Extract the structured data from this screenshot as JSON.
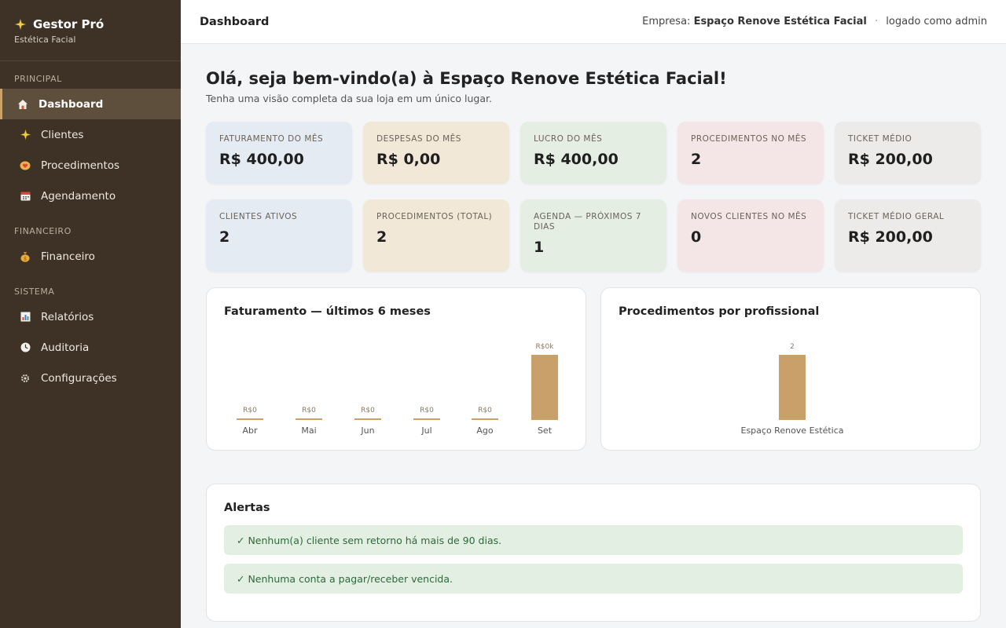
{
  "app": {
    "name": "Gestor Pró",
    "subtitle": "Estética Facial"
  },
  "sidebar": {
    "sections": [
      {
        "label": "PRINCIPAL",
        "items": [
          {
            "label": "Dashboard",
            "icon": "home-icon",
            "active": true
          },
          {
            "label": "Clientes",
            "icon": "sparkle-icon"
          },
          {
            "label": "Procedimentos",
            "icon": "heart-hands-icon"
          },
          {
            "label": "Agendamento",
            "icon": "calendar-icon"
          }
        ]
      },
      {
        "label": "FINANCEIRO",
        "items": [
          {
            "label": "Financeiro",
            "icon": "money-bag-icon"
          }
        ]
      },
      {
        "label": "SISTEMA",
        "items": [
          {
            "label": "Relatórios",
            "icon": "bar-chart-icon"
          },
          {
            "label": "Auditoria",
            "icon": "clock-icon"
          },
          {
            "label": "Configurações",
            "icon": "gear-icon"
          }
        ]
      }
    ]
  },
  "header": {
    "title": "Dashboard",
    "company_label": "Empresa:",
    "company_name": "Espaço Renove Estética Facial",
    "separator": "·",
    "user_text": "logado como admin"
  },
  "welcome": {
    "title": "Olá, seja bem-vindo(a) à Espaço Renove Estética Facial!",
    "subtitle": "Tenha uma visão completa da sua loja em um único lugar."
  },
  "kpis_row1": [
    {
      "label": "FATURAMENTO DO MÊS",
      "value": "R$ 400,00",
      "color": "#e4ebf3"
    },
    {
      "label": "DESPESAS DO MÊS",
      "value": "R$ 0,00",
      "color": "#f1e8d8"
    },
    {
      "label": "LUCRO DO MÊS",
      "value": "R$ 400,00",
      "color": "#e5eee3"
    },
    {
      "label": "PROCEDIMENTOS NO MÊS",
      "value": "2",
      "color": "#f4e5e7"
    },
    {
      "label": "TICKET MÉDIO",
      "value": "R$ 200,00",
      "color": "#ecebea"
    }
  ],
  "kpis_row2": [
    {
      "label": "CLIENTES ATIVOS",
      "value": "2",
      "color": "#e4ebf3"
    },
    {
      "label": "PROCEDIMENTOS (TOTAL)",
      "value": "2",
      "color": "#f1e8d8"
    },
    {
      "label": "AGENDA — PRÓXIMOS 7 DIAS",
      "value": "1",
      "color": "#e5eee3"
    },
    {
      "label": "NOVOS CLIENTES NO MÊS",
      "value": "0",
      "color": "#f4e5e7"
    },
    {
      "label": "TICKET MÉDIO GERAL",
      "value": "R$ 200,00",
      "color": "#ecebea"
    }
  ],
  "chart_data": [
    {
      "type": "bar",
      "title": "Faturamento — últimos 6 meses",
      "categories": [
        "Abr",
        "Mai",
        "Jun",
        "Jul",
        "Ago",
        "Set"
      ],
      "values": [
        0,
        0,
        0,
        0,
        0,
        400
      ],
      "data_labels": [
        "R$0",
        "R$0",
        "R$0",
        "R$0",
        "R$0",
        "R$0k"
      ],
      "bar_color": "#c9a06a"
    },
    {
      "type": "bar",
      "title": "Procedimentos por profissional",
      "categories": [
        "Espaço Renove Estética"
      ],
      "values": [
        2
      ],
      "data_labels": [
        "2"
      ],
      "bar_color": "#c9a06a"
    }
  ],
  "alerts": {
    "title": "Alertas",
    "items": [
      "✓ Nenhum(a) cliente sem retorno há mais de 90 dias.",
      "✓ Nenhuma conta a pagar/receber vencida."
    ],
    "color": "#2d6a3a"
  }
}
